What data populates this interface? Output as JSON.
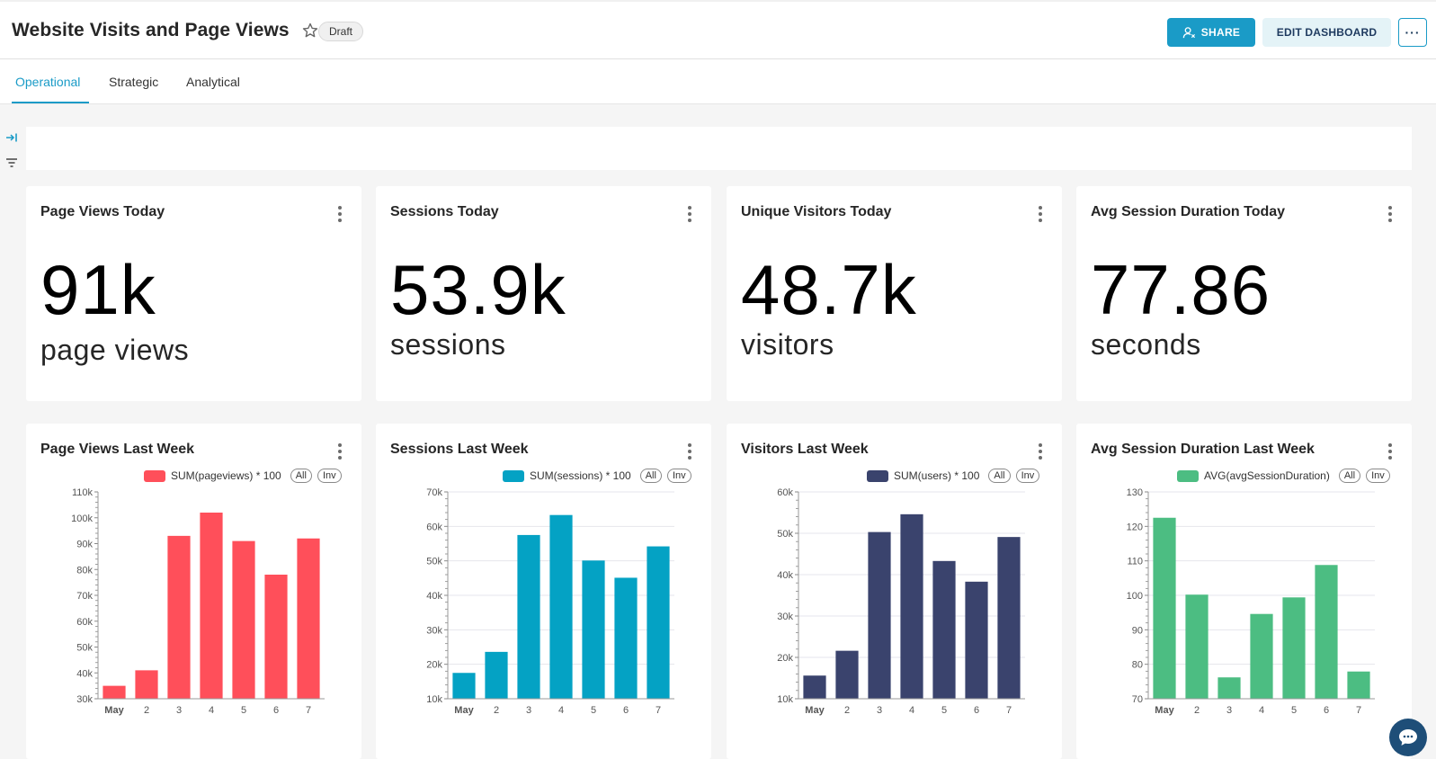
{
  "header": {
    "title": "Website Visits and Page Views",
    "badge": "Draft",
    "share_label": "SHARE",
    "edit_label": "EDIT DASHBOARD",
    "more_label": "···"
  },
  "tabs": [
    {
      "label": "Operational",
      "active": true
    },
    {
      "label": "Strategic",
      "active": false
    },
    {
      "label": "Analytical",
      "active": false
    }
  ],
  "kpis": [
    {
      "title": "Page Views Today",
      "value": "91k",
      "unit": "page views"
    },
    {
      "title": "Sessions Today",
      "value": "53.9k",
      "unit": "sessions"
    },
    {
      "title": "Unique Visitors Today",
      "value": "48.7k",
      "unit": "visitors"
    },
    {
      "title": "Avg Session Duration Today",
      "value": "77.86",
      "unit": "seconds"
    }
  ],
  "legend_buttons": {
    "all": "All",
    "inv": "Inv"
  },
  "colors": {
    "accent": "#1a9bc7",
    "pageviews": "#ff4f5a",
    "sessions": "#04a2c4",
    "users": "#3a436d",
    "duration": "#4cbd82"
  },
  "chart_data": [
    {
      "type": "bar",
      "title": "Page Views Last Week",
      "categories": [
        "May",
        "2",
        "3",
        "4",
        "5",
        "6",
        "7"
      ],
      "series": [
        {
          "name": "SUM(pageviews) * 100",
          "values": [
            35000,
            41000,
            93000,
            102000,
            91000,
            78000,
            92000
          ]
        }
      ],
      "ylim": [
        30000,
        110000
      ],
      "yticks": [
        30000,
        40000,
        50000,
        60000,
        70000,
        80000,
        90000,
        100000,
        110000
      ],
      "ytick_labels": [
        "30k",
        "40k",
        "50k",
        "60k",
        "70k",
        "80k",
        "90k",
        "100k",
        "110k"
      ],
      "color": "#ff4f5a",
      "grid": false
    },
    {
      "type": "bar",
      "title": "Sessions Last Week",
      "categories": [
        "May",
        "2",
        "3",
        "4",
        "5",
        "6",
        "7"
      ],
      "series": [
        {
          "name": "SUM(sessions) * 100",
          "values": [
            17500,
            23600,
            57500,
            63300,
            50100,
            45100,
            54200
          ]
        }
      ],
      "ylim": [
        10000,
        70000
      ],
      "yticks": [
        10000,
        20000,
        30000,
        40000,
        50000,
        60000,
        70000
      ],
      "ytick_labels": [
        "10k",
        "20k",
        "30k",
        "40k",
        "50k",
        "60k",
        "70k"
      ],
      "color": "#04a2c4",
      "grid": true
    },
    {
      "type": "bar",
      "title": "Visitors Last Week",
      "categories": [
        "May",
        "2",
        "3",
        "4",
        "5",
        "6",
        "7"
      ],
      "series": [
        {
          "name": "SUM(users) * 100",
          "values": [
            15600,
            21600,
            50300,
            54600,
            43300,
            38300,
            49100
          ]
        }
      ],
      "ylim": [
        10000,
        60000
      ],
      "yticks": [
        10000,
        20000,
        30000,
        40000,
        50000,
        60000
      ],
      "ytick_labels": [
        "10k",
        "20k",
        "30k",
        "40k",
        "50k",
        "60k"
      ],
      "color": "#3a436d",
      "grid": true
    },
    {
      "type": "bar",
      "title": "Avg Session Duration Last Week",
      "categories": [
        "May",
        "2",
        "3",
        "4",
        "5",
        "6",
        "7"
      ],
      "series": [
        {
          "name": "AVG(avgSessionDuration)",
          "values": [
            122.5,
            100.2,
            76.2,
            94.6,
            99.4,
            108.8,
            77.9
          ]
        }
      ],
      "ylim": [
        70,
        130
      ],
      "yticks": [
        70,
        80,
        90,
        100,
        110,
        120,
        130
      ],
      "ytick_labels": [
        "70",
        "80",
        "90",
        "100",
        "110",
        "120",
        "130"
      ],
      "color": "#4cbd82",
      "grid": true
    }
  ]
}
